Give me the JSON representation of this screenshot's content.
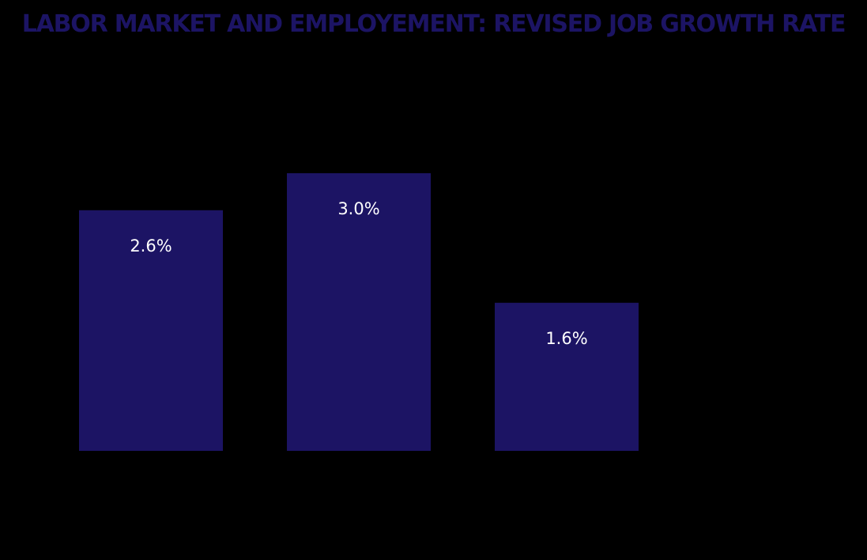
{
  "chart_data": {
    "type": "bar",
    "title": "LABOR MARKET AND EMPLOYEMENT: REVISED JOB GROWTH RATE",
    "categories": [
      "",
      "",
      ""
    ],
    "values": [
      2.6,
      3.0,
      1.6
    ],
    "value_labels": [
      "2.6%",
      "3.0%",
      "1.6%"
    ],
    "unit": "%",
    "xlabel": "",
    "ylabel": "",
    "ylim": [
      0,
      4.2
    ],
    "grid": false,
    "legend": "none",
    "colors": {
      "bar": "#1c1464",
      "title": "#1c1464",
      "data_label": "#ffffff",
      "background": "#000000"
    }
  }
}
